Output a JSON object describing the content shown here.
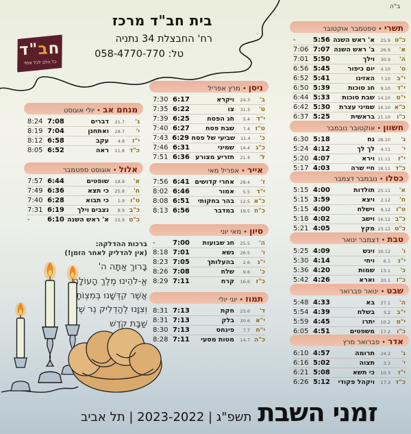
{
  "page": {
    "bsd": "ב\"ה",
    "bullet": "•"
  },
  "header": {
    "logo": {
      "l1": "ח",
      "l2": "ב",
      "l3": "\"ד",
      "tagline": "כל הלב לכל אחד"
    },
    "org": "בית חב\"ד מרכז",
    "address": "רח' החבצלת 34 נתניה",
    "phone": "טל: 058-4770-770"
  },
  "blessing": {
    "title": "ברכות ההדלקה:",
    "warning": "(אין להדליק לאחר הזמן!)",
    "lines": [
      "בָּרוּךְ אַתָּה ה'",
      "אֱ-לֹהֵינוּ מֶלֶךְ הָעוֹלָם",
      "אֲשֶׁר קִדְּשָׁנוּ בְּמִצְוֹתָיו",
      "וְצִוָּנוּ לְהַדְלִיק נֵר שֶׁל",
      "שַׁבָּת קֹדֶשׁ"
    ]
  },
  "footer": {
    "title": "זמני השבת",
    "meta": "תשפ\"ג | 2023-2022 | תל אביב"
  },
  "columns": {
    "right": [
      {
        "id": "tishrei",
        "name": "תשרי",
        "greg": "ספטמבר אוקטובר",
        "rows": [
          [
            "כ\"ט",
            "25.9",
            "א' ראש השנה",
            "5:56",
            "-"
          ],
          [
            "א'",
            "26.9",
            "ב' ראש השנה",
            "7:07",
            "7:06"
          ],
          [
            "ה'",
            "30.9",
            "וילך",
            "5:50",
            "7:01"
          ],
          [
            "ט'",
            "4.10",
            "יום כיפור",
            "5:45",
            "6:56"
          ],
          [
            "י\"ב",
            "7.10",
            "האזינו",
            "5:41",
            "6:52"
          ],
          [
            "י\"ד",
            "9.10",
            "חג סוכות",
            "5:39",
            "6:50"
          ],
          [
            "י\"ט",
            "14.10",
            "שבת סוכות",
            "5:33",
            "6:44"
          ],
          [
            "כ\"א",
            "16.10",
            "שמיני עצרת",
            "5:30",
            "6:42"
          ],
          [
            "כ\"ו",
            "21.10",
            "בראשית",
            "5:25",
            "6:37"
          ]
        ]
      },
      {
        "id": "cheshvan",
        "name": "חשוון",
        "greg": "אוקטובר נובמבר",
        "rows": [
          [
            "ג'",
            "28.10",
            "נח",
            "5:18",
            "6:30"
          ],
          [
            "י'",
            "4.11",
            "לך לך",
            "4:12",
            "5:24"
          ],
          [
            "י\"ז",
            "11.11",
            "וירא",
            "4:07",
            "5:20"
          ],
          [
            "כ\"ד",
            "18.11",
            "חיי שרה",
            "4:03",
            "5:17"
          ]
        ]
      },
      {
        "id": "kislev",
        "name": "כסלו",
        "greg": "נובמבר דצמבר",
        "rows": [
          [
            "א'",
            "25.11",
            "תולדות",
            "4:00",
            "5:15"
          ],
          [
            "ח'",
            "2.12",
            "ויצא",
            "3:59",
            "5:15"
          ],
          [
            "ט\"ו",
            "9.12",
            "וישלח",
            "4:00",
            "5:15"
          ],
          [
            "כ\"ב",
            "16.12",
            "וישב",
            "4:02",
            "5:18"
          ],
          [
            "כ\"ט",
            "23.12",
            "מקץ",
            "4:05",
            "5:21"
          ]
        ]
      },
      {
        "id": "tevet",
        "name": "טבת",
        "greg": "דצמבר ינואר",
        "rows": [
          [
            "ו'",
            "30.12",
            "ויגש",
            "4:09",
            "5:25"
          ],
          [
            "י\"ג",
            "6.1",
            "ויחי",
            "4:14",
            "5:30"
          ],
          [
            "כ'",
            "13.1",
            "שמות",
            "4:20",
            "5:36"
          ],
          [
            "כ\"ז",
            "20.1",
            "וארא",
            "4:26",
            "5:42"
          ]
        ]
      },
      {
        "id": "shevat",
        "name": "שבט",
        "greg": "ינואר פברואר",
        "rows": [
          [
            "ה'",
            "27.1",
            "בא",
            "4:33",
            "5:48"
          ],
          [
            "י\"ב",
            "3.2",
            "בשלח",
            "4:39",
            "5:54"
          ],
          [
            "י\"ט",
            "10.2",
            "יתרו",
            "4:45",
            "5:59"
          ],
          [
            "כ\"ו",
            "17.2",
            "משפטים",
            "4:51",
            "6:05"
          ]
        ]
      },
      {
        "id": "adar",
        "name": "אדר",
        "greg": "פברואר מרץ",
        "rows": [
          [
            "ג'",
            "24.2",
            "תרומה",
            "4:57",
            "6:10"
          ],
          [
            "י'",
            "3.3",
            "תצוה",
            "5:02",
            "6:16"
          ],
          [
            "י\"ז",
            "10.3",
            "כי תשא",
            "5:08",
            "6:21"
          ],
          [
            "כ\"ד",
            "17.3",
            "ויקהל פקודי",
            "5:12",
            "6:26"
          ]
        ]
      }
    ],
    "middle": [
      {
        "id": "nisan",
        "name": "ניסן",
        "greg": "מרץ אפריל",
        "rows": [
          [
            "ב'",
            "24.3",
            "ויקרא",
            "6:17",
            "7:30"
          ],
          [
            "ט'",
            "31.3",
            "צו",
            "6:22",
            "7:35"
          ],
          [
            "י\"ד",
            "5.4",
            "חג הפסח",
            "6:25",
            "7:39"
          ],
          [
            "ט\"ז",
            "7.4",
            "שבת פסח",
            "6:27",
            "7:40"
          ],
          [
            "כ'",
            "11.4",
            "שביעי של פסח",
            "6:29",
            "7:43"
          ],
          [
            "כ\"ג",
            "14.4",
            "שמיני",
            "6:31",
            "7:46"
          ],
          [
            "ל'",
            "21.4",
            "תזריע מצורע",
            "6:36",
            "7:51"
          ]
        ]
      },
      {
        "id": "iyar",
        "name": "אייר",
        "greg": "אפריל מאי",
        "rows": [
          [
            "ז'",
            "28.4",
            "אחרי קדושים",
            "6:41",
            "7:56"
          ],
          [
            "י\"ד",
            "5.5",
            "אמור",
            "6:46",
            "8:02"
          ],
          [
            "כ\"א",
            "12.5",
            "בהר בחקותי",
            "6:51",
            "8:08"
          ],
          [
            "כ\"ח",
            "19.5",
            "במדבר",
            "6:56",
            "8:13"
          ]
        ]
      },
      {
        "id": "sivan",
        "name": "סיון",
        "greg": "מאי יוני",
        "rows": [
          [
            "ה'",
            "25.5",
            "חג שבועות",
            "7:00",
            "-"
          ],
          [
            "ו'",
            "26.5",
            "נשא",
            "7:01",
            "8:18"
          ],
          [
            "י\"ג",
            "2.6",
            "בהעלותך",
            "7:05",
            "8:23"
          ],
          [
            "כ'",
            "9.6",
            "שלח",
            "7:08",
            "8:26"
          ],
          [
            "כ\"ז",
            "16.6",
            "קרח",
            "7:11",
            "8:29"
          ]
        ]
      },
      {
        "id": "tamuz",
        "name": "תמוז",
        "greg": "יוני יולי",
        "rows": [
          [
            "ד'",
            "23.6",
            "חקת",
            "7:13",
            "8:31"
          ],
          [
            "י\"א",
            "30.6",
            "בלק",
            "7:13",
            "8:31"
          ],
          [
            "י\"ח",
            "7.7",
            "פינחס",
            "7:13",
            "8:30"
          ],
          [
            "כ\"ה",
            "14.7",
            "מטות מסעי",
            "7:11",
            "8:28"
          ]
        ]
      }
    ],
    "left": [
      {
        "id": "av",
        "name": "מנחם אב",
        "greg": "יולי אוגוסט",
        "rows": [
          [
            "ג'",
            "21.7",
            "דברים",
            "7:08",
            "8:24"
          ],
          [
            "י'",
            "28.7",
            "ואתחנן",
            "7:04",
            "8:19"
          ],
          [
            "י\"ז",
            "4.8",
            "עקב",
            "6:58",
            "8:12"
          ],
          [
            "כ\"ד",
            "11.8",
            "ראה",
            "6:52",
            "8:05"
          ]
        ]
      },
      {
        "id": "elul",
        "name": "אלול",
        "greg": "אוגוסט ספטמבר",
        "rows": [
          [
            "א'",
            "18.8",
            "שופטים",
            "6:44",
            "7:57"
          ],
          [
            "ח'",
            "25.8",
            "כי תצא",
            "6:36",
            "7:49"
          ],
          [
            "ט\"ו",
            "1.9",
            "כי תבוא",
            "6:28",
            "7:40"
          ],
          [
            "כ\"ב",
            "8.9",
            "נצבים וילך",
            "6:19",
            "7:31"
          ],
          [
            "כ\"ט",
            "15.9",
            "א' ראש השנה",
            "6:10",
            "-"
          ]
        ]
      }
    ]
  }
}
